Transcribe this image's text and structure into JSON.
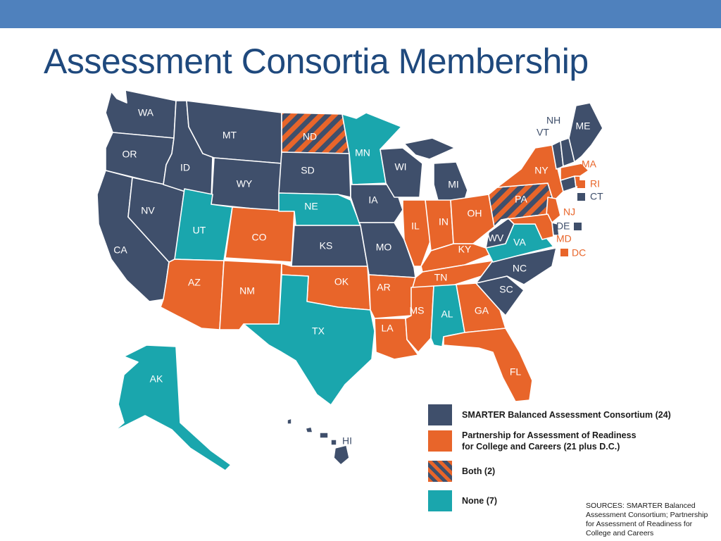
{
  "slide": {
    "title": "Assessment Consortia Membership"
  },
  "colors": {
    "smarter": "#3f4f6b",
    "parcc": "#e8652a",
    "none": "#1aa6ad",
    "header_bar": "#4f81bd",
    "title": "#1f497d"
  },
  "legend": [
    {
      "category": "smarter",
      "label_line1": "SMARTER Balanced Assessment Consortium (24)",
      "label_line2": ""
    },
    {
      "category": "parcc",
      "label_line1": "Partnership for Assessment of Readiness",
      "label_line2": "for College and Careers (21 plus D.C.)"
    },
    {
      "category": "both",
      "label_line1": "Both (2)",
      "label_line2": ""
    },
    {
      "category": "none",
      "label_line1": "None (7)",
      "label_line2": ""
    }
  ],
  "states": [
    {
      "abbr": "WA",
      "group": "smarter"
    },
    {
      "abbr": "OR",
      "group": "smarter"
    },
    {
      "abbr": "CA",
      "group": "smarter"
    },
    {
      "abbr": "NV",
      "group": "smarter"
    },
    {
      "abbr": "ID",
      "group": "smarter"
    },
    {
      "abbr": "MT",
      "group": "smarter"
    },
    {
      "abbr": "WY",
      "group": "smarter"
    },
    {
      "abbr": "UT",
      "group": "none"
    },
    {
      "abbr": "AZ",
      "group": "parcc"
    },
    {
      "abbr": "CO",
      "group": "parcc"
    },
    {
      "abbr": "NM",
      "group": "parcc"
    },
    {
      "abbr": "ND",
      "group": "both"
    },
    {
      "abbr": "SD",
      "group": "smarter"
    },
    {
      "abbr": "NE",
      "group": "none"
    },
    {
      "abbr": "KS",
      "group": "smarter"
    },
    {
      "abbr": "OK",
      "group": "parcc"
    },
    {
      "abbr": "TX",
      "group": "none"
    },
    {
      "abbr": "MN",
      "group": "none"
    },
    {
      "abbr": "IA",
      "group": "smarter"
    },
    {
      "abbr": "MO",
      "group": "smarter"
    },
    {
      "abbr": "AR",
      "group": "parcc"
    },
    {
      "abbr": "LA",
      "group": "parcc"
    },
    {
      "abbr": "WI",
      "group": "smarter"
    },
    {
      "abbr": "IL",
      "group": "parcc"
    },
    {
      "abbr": "MI",
      "group": "smarter"
    },
    {
      "abbr": "IN",
      "group": "parcc"
    },
    {
      "abbr": "OH",
      "group": "parcc"
    },
    {
      "abbr": "KY",
      "group": "parcc"
    },
    {
      "abbr": "TN",
      "group": "parcc"
    },
    {
      "abbr": "MS",
      "group": "parcc"
    },
    {
      "abbr": "AL",
      "group": "none"
    },
    {
      "abbr": "GA",
      "group": "parcc"
    },
    {
      "abbr": "FL",
      "group": "parcc"
    },
    {
      "abbr": "SC",
      "group": "smarter"
    },
    {
      "abbr": "NC",
      "group": "smarter"
    },
    {
      "abbr": "VA",
      "group": "none"
    },
    {
      "abbr": "WV",
      "group": "smarter"
    },
    {
      "abbr": "PA",
      "group": "both"
    },
    {
      "abbr": "NY",
      "group": "parcc"
    },
    {
      "abbr": "VT",
      "group": "smarter"
    },
    {
      "abbr": "NH",
      "group": "smarter"
    },
    {
      "abbr": "ME",
      "group": "smarter"
    },
    {
      "abbr": "MA",
      "group": "parcc"
    },
    {
      "abbr": "RI",
      "group": "parcc"
    },
    {
      "abbr": "CT",
      "group": "smarter"
    },
    {
      "abbr": "NJ",
      "group": "parcc"
    },
    {
      "abbr": "DE",
      "group": "smarter"
    },
    {
      "abbr": "MD",
      "group": "parcc"
    },
    {
      "abbr": "DC",
      "group": "parcc"
    },
    {
      "abbr": "AK",
      "group": "none"
    },
    {
      "abbr": "HI",
      "group": "smarter"
    }
  ],
  "sources": {
    "line1": "SOURCES: SMARTER Balanced",
    "line2": "Assessment Consortium; Partnership",
    "line3": "for Assessment of Readiness for",
    "line4": "College and Careers"
  }
}
